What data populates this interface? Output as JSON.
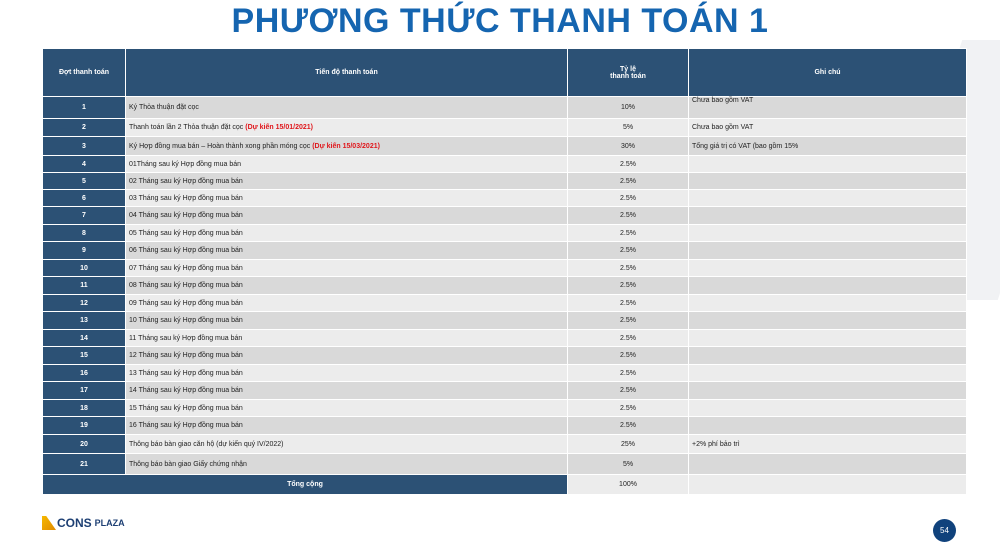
{
  "title": "PHƯƠNG THỨC THANH TOÁN 1",
  "table": {
    "headers": [
      "Đợt thanh toán",
      "Tiến độ thanh toán",
      "Tỷ lệ\nthanh toán",
      "Ghi chú"
    ],
    "rows": [
      {
        "no": "1",
        "desc": "Ký Thỏa thuận đặt cọc",
        "note_red": "",
        "rate": "10%",
        "remark": "Chưa bao gồm VAT"
      },
      {
        "no": "2",
        "desc": "Thanh toán lần 2 Thỏa thuận đặt cọc ",
        "note_red": "(Dự kiến 15/01/2021)",
        "rate": "5%",
        "remark": "Chưa bao gồm VAT"
      },
      {
        "no": "3",
        "desc": "Ký Hợp đồng mua bán – Hoàn thành xong phần móng cọc ",
        "note_red": "(Dự kiến 15/03/2021)",
        "rate": "30%",
        "remark": "Tổng giá trị có VAT (bao gồm 15%"
      },
      {
        "no": "4",
        "desc": "01Tháng sau ký Hợp đồng mua bán",
        "note_red": "",
        "rate": "2.5%",
        "remark": ""
      },
      {
        "no": "5",
        "desc": "02 Tháng sau ký Hợp đồng mua bán",
        "note_red": "",
        "rate": "2.5%",
        "remark": ""
      },
      {
        "no": "6",
        "desc": "03 Tháng sau ký Hợp đồng mua bán",
        "note_red": "",
        "rate": "2.5%",
        "remark": ""
      },
      {
        "no": "7",
        "desc": "04 Tháng sau ký Hợp đồng mua bán",
        "note_red": "",
        "rate": "2.5%",
        "remark": ""
      },
      {
        "no": "8",
        "desc": "05 Tháng sau ký Hợp đồng mua bán",
        "note_red": "",
        "rate": "2.5%",
        "remark": ""
      },
      {
        "no": "9",
        "desc": "06 Tháng sau ký Hợp đồng mua bán",
        "note_red": "",
        "rate": "2.5%",
        "remark": ""
      },
      {
        "no": "10",
        "desc": "07 Tháng sau ký Hợp đồng mua bán",
        "note_red": "",
        "rate": "2.5%",
        "remark": ""
      },
      {
        "no": "11",
        "desc": "08 Tháng sau ký Hợp đồng mua bán",
        "note_red": "",
        "rate": "2.5%",
        "remark": ""
      },
      {
        "no": "12",
        "desc": "09 Tháng sau ký Hợp đồng mua bán",
        "note_red": "",
        "rate": "2.5%",
        "remark": ""
      },
      {
        "no": "13",
        "desc": "10 Tháng sau ký Hợp đồng mua bán",
        "note_red": "",
        "rate": "2.5%",
        "remark": ""
      },
      {
        "no": "14",
        "desc": "11 Tháng sau ký Hợp đồng mua bán",
        "note_red": "",
        "rate": "2.5%",
        "remark": ""
      },
      {
        "no": "15",
        "desc": "12 Tháng sau ký Hợp đồng mua bán",
        "note_red": "",
        "rate": "2.5%",
        "remark": ""
      },
      {
        "no": "16",
        "desc": "13 Tháng sau ký Hợp đồng mua bán",
        "note_red": "",
        "rate": "2.5%",
        "remark": ""
      },
      {
        "no": "17",
        "desc": "14 Tháng sau ký Hợp đồng mua bán",
        "note_red": "",
        "rate": "2.5%",
        "remark": ""
      },
      {
        "no": "18",
        "desc": "15 Tháng sau ký Hợp đồng mua bán",
        "note_red": "",
        "rate": "2.5%",
        "remark": ""
      },
      {
        "no": "19",
        "desc": "16 Tháng sau ký Hợp đồng mua bán",
        "note_red": "",
        "rate": "2.5%",
        "remark": ""
      },
      {
        "no": "20",
        "desc": "Thông báo bàn giao căn hộ (dự kiến quý IV/2022)",
        "note_red": "",
        "rate": "25%",
        "remark": "+2% phí bảo trì"
      },
      {
        "no": "21",
        "desc": "Thông báo bàn giao Giấy chứng nhận",
        "note_red": "",
        "rate": "5%",
        "remark": ""
      }
    ],
    "total_label": "Tổng cộng",
    "total_rate": "100%"
  },
  "footer": {
    "logo_text": "CONS PLAZA",
    "logo_cons": "CONS",
    "logo_plaza": "PLAZA",
    "page_number": "54"
  },
  "colors": {
    "title": "#1565b0",
    "header_bg": "#2c5175",
    "highlight_red": "#e0161b",
    "page_badge": "#10427c"
  }
}
